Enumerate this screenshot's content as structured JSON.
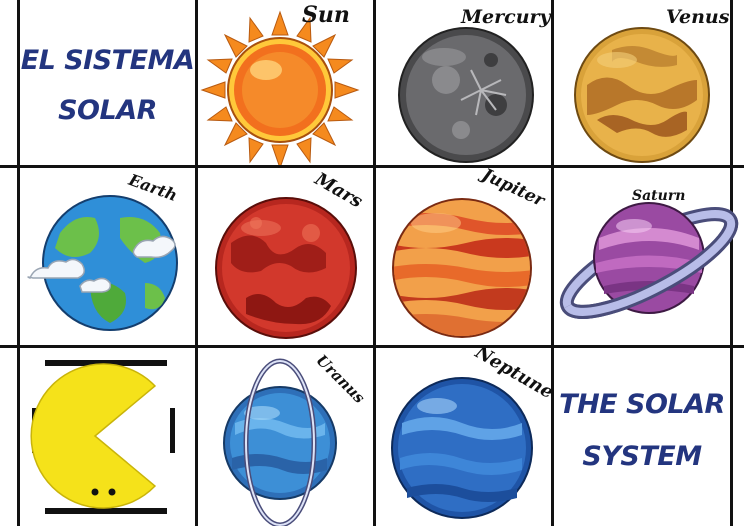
{
  "cards": {
    "title_es": {
      "line1": "EL SISTEMA",
      "line2": "SOLAR"
    },
    "title_en": {
      "line1": "THE SOLAR",
      "line2": "SYSTEM"
    },
    "sun": {
      "label": "Sun"
    },
    "mercury": {
      "label": "Mercury"
    },
    "venus": {
      "label": "Venus"
    },
    "earth": {
      "label": "Earth"
    },
    "mars": {
      "label": "Mars"
    },
    "jupiter": {
      "label": "Jupiter"
    },
    "saturn": {
      "label": "Saturn"
    },
    "uranus": {
      "label": "Uranus"
    },
    "neptune": {
      "label": "Neptune"
    }
  },
  "colors": {
    "title": "#23357f",
    "sun": "#f47a1c",
    "mercury": "#5b5b5e",
    "venus": "#e8a93a",
    "earth_ocean": "#2f8fd8",
    "earth_land": "#6cc04a",
    "mars": "#c8332a",
    "jupiter": "#e06a2a",
    "saturn": "#b45fb8",
    "uranus": "#3d8fd6",
    "neptune": "#2f6ec4",
    "pacman": "#f5e21a"
  }
}
